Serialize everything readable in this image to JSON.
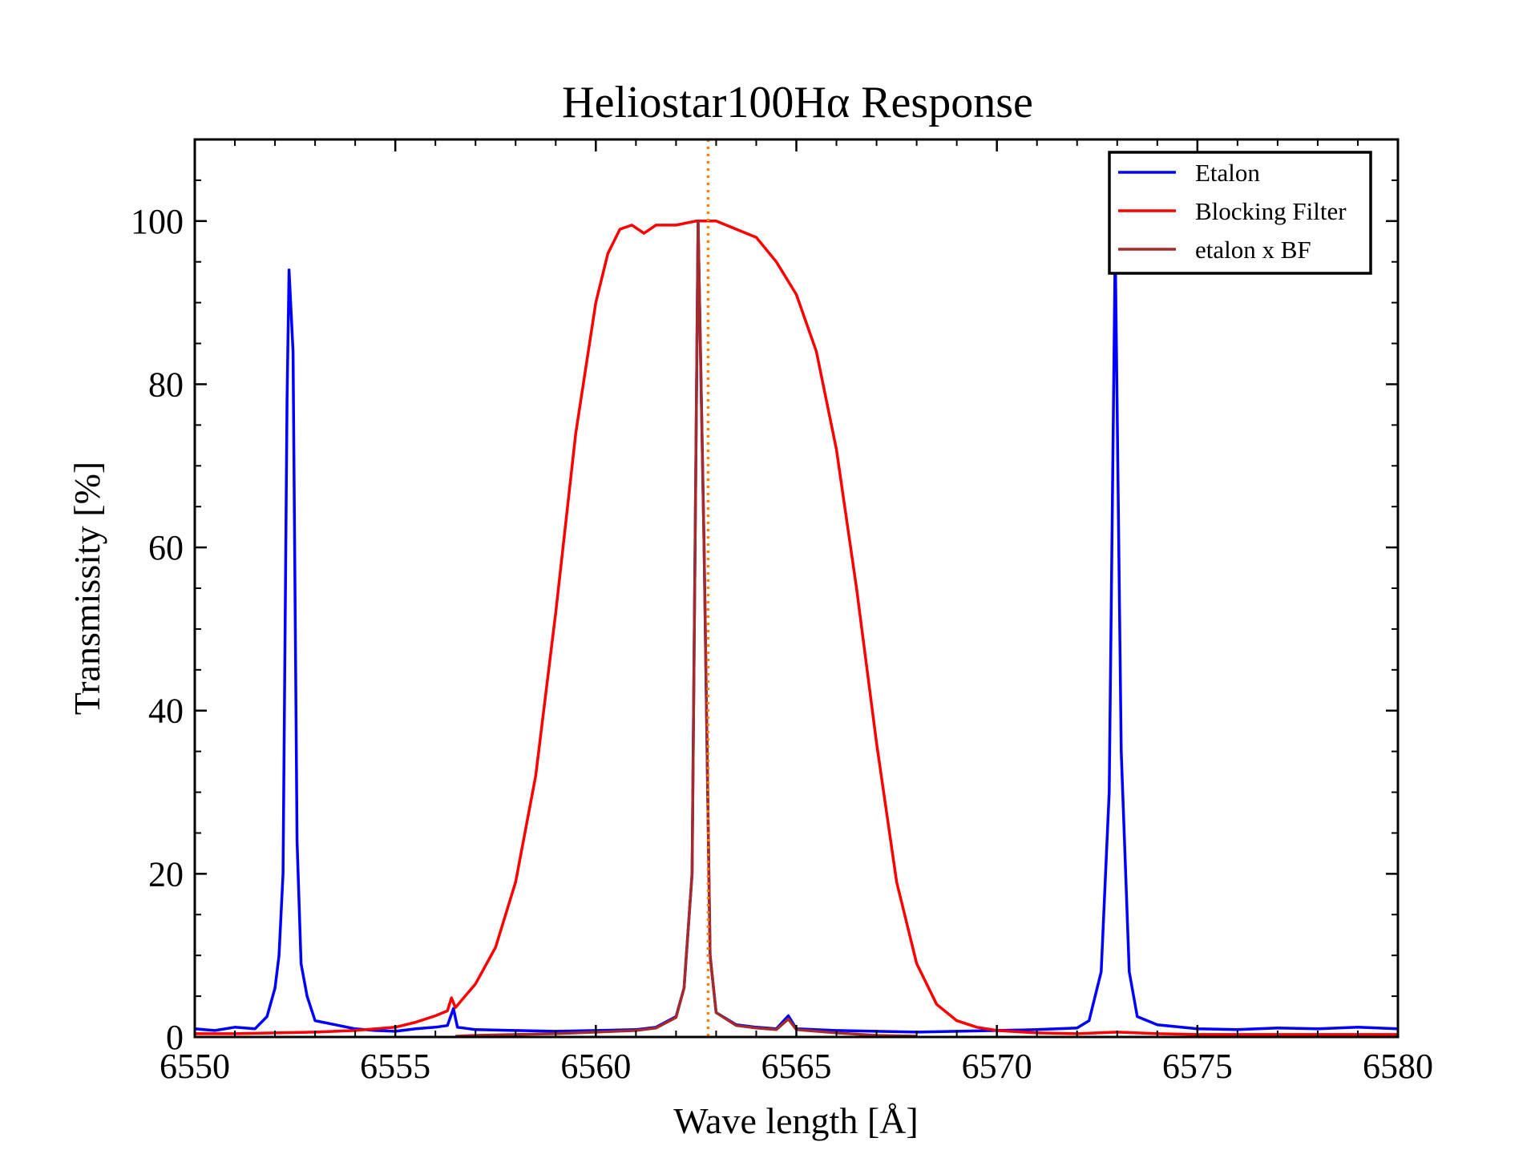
{
  "chart_data": {
    "type": "line",
    "title": "Heliostar100Hα Response",
    "xlabel": "Wave length [Å]",
    "ylabel": "Transmissity [%]",
    "xlim": [
      6550,
      6580
    ],
    "ylim": [
      0,
      110
    ],
    "x_ticks": [
      "6550",
      "6555",
      "6560",
      "6565",
      "6570",
      "6575",
      "6580"
    ],
    "y_ticks": [
      "0",
      "20",
      "40",
      "60",
      "80",
      "100"
    ],
    "grid": false,
    "legend_position": "top-right",
    "reference_line": {
      "x": 6562.8,
      "style": "dotted",
      "color": "#ff7f0e"
    },
    "series": [
      {
        "name": "Etalon",
        "color": "#0000ff",
        "points": [
          [
            6550,
            1.0
          ],
          [
            6550.5,
            0.8
          ],
          [
            6551,
            1.2
          ],
          [
            6551.5,
            1.0
          ],
          [
            6551.8,
            2.5
          ],
          [
            6552,
            6
          ],
          [
            6552.1,
            10
          ],
          [
            6552.2,
            20
          ],
          [
            6552.3,
            78
          ],
          [
            6552.35,
            94
          ],
          [
            6552.45,
            84
          ],
          [
            6552.55,
            24
          ],
          [
            6552.65,
            9
          ],
          [
            6552.8,
            5
          ],
          [
            6553,
            2
          ],
          [
            6553.5,
            1.5
          ],
          [
            6554,
            1.0
          ],
          [
            6554.5,
            0.8
          ],
          [
            6555,
            0.7
          ],
          [
            6555.5,
            1.0
          ],
          [
            6556,
            1.2
          ],
          [
            6556.3,
            1.4
          ],
          [
            6556.45,
            3.5
          ],
          [
            6556.55,
            1.2
          ],
          [
            6557,
            0.9
          ],
          [
            6558,
            0.8
          ],
          [
            6559,
            0.7
          ],
          [
            6560,
            0.8
          ],
          [
            6561,
            0.9
          ],
          [
            6561.5,
            1.2
          ],
          [
            6562,
            2.5
          ],
          [
            6562.2,
            6
          ],
          [
            6562.4,
            20
          ],
          [
            6562.55,
            100
          ],
          [
            6562.7,
            60
          ],
          [
            6562.85,
            10
          ],
          [
            6563,
            3
          ],
          [
            6563.5,
            1.5
          ],
          [
            6564,
            1.2
          ],
          [
            6564.5,
            1.0
          ],
          [
            6564.8,
            2.6
          ],
          [
            6565,
            1.0
          ],
          [
            6566,
            0.8
          ],
          [
            6567,
            0.7
          ],
          [
            6568,
            0.6
          ],
          [
            6569,
            0.7
          ],
          [
            6570,
            0.8
          ],
          [
            6571,
            0.9
          ],
          [
            6572,
            1.1
          ],
          [
            6572.3,
            2.0
          ],
          [
            6572.6,
            8
          ],
          [
            6572.8,
            30
          ],
          [
            6572.95,
            97
          ],
          [
            6573.1,
            35
          ],
          [
            6573.3,
            8
          ],
          [
            6573.5,
            2.5
          ],
          [
            6574,
            1.5
          ],
          [
            6575,
            1.0
          ],
          [
            6576,
            0.9
          ],
          [
            6577,
            1.1
          ],
          [
            6578,
            1.0
          ],
          [
            6579,
            1.2
          ],
          [
            6580,
            1.0
          ]
        ]
      },
      {
        "name": "Blocking Filter",
        "color": "#ff0000",
        "points": [
          [
            6550,
            0.4
          ],
          [
            6551,
            0.4
          ],
          [
            6552,
            0.5
          ],
          [
            6553,
            0.6
          ],
          [
            6554,
            0.8
          ],
          [
            6555,
            1.2
          ],
          [
            6555.5,
            1.8
          ],
          [
            6556,
            2.6
          ],
          [
            6556.3,
            3.2
          ],
          [
            6556.4,
            4.8
          ],
          [
            6556.5,
            3.6
          ],
          [
            6557,
            6.5
          ],
          [
            6557.5,
            11
          ],
          [
            6558,
            19
          ],
          [
            6558.5,
            32
          ],
          [
            6559,
            52
          ],
          [
            6559.5,
            74
          ],
          [
            6560,
            90
          ],
          [
            6560.3,
            96
          ],
          [
            6560.6,
            99
          ],
          [
            6560.9,
            99.5
          ],
          [
            6561.2,
            98.5
          ],
          [
            6561.5,
            99.5
          ],
          [
            6562,
            99.5
          ],
          [
            6562.5,
            100
          ],
          [
            6563,
            100
          ],
          [
            6563.5,
            99
          ],
          [
            6564,
            98
          ],
          [
            6564.5,
            95
          ],
          [
            6565,
            91
          ],
          [
            6565.5,
            84
          ],
          [
            6566,
            72
          ],
          [
            6566.5,
            55
          ],
          [
            6567,
            36
          ],
          [
            6567.5,
            19
          ],
          [
            6568,
            9
          ],
          [
            6568.5,
            4
          ],
          [
            6569,
            2
          ],
          [
            6569.5,
            1.2
          ],
          [
            6570,
            0.8
          ],
          [
            6571,
            0.5
          ],
          [
            6572,
            0.4
          ],
          [
            6573,
            0.6
          ],
          [
            6574,
            0.4
          ],
          [
            6575,
            0.3
          ],
          [
            6576,
            0.3
          ],
          [
            6577,
            0.3
          ],
          [
            6578,
            0.3
          ],
          [
            6579,
            0.3
          ],
          [
            6580,
            0.3
          ]
        ]
      },
      {
        "name": "etalon x BF",
        "color": "#a52a2a",
        "points": [
          [
            6556.5,
            0.1
          ],
          [
            6557,
            0.2
          ],
          [
            6558,
            0.3
          ],
          [
            6559,
            0.4
          ],
          [
            6560,
            0.6
          ],
          [
            6561,
            0.8
          ],
          [
            6561.5,
            1.1
          ],
          [
            6562,
            2.4
          ],
          [
            6562.2,
            6
          ],
          [
            6562.4,
            20
          ],
          [
            6562.55,
            100
          ],
          [
            6562.7,
            60
          ],
          [
            6562.85,
            10
          ],
          [
            6563,
            3
          ],
          [
            6563.5,
            1.4
          ],
          [
            6564,
            1.1
          ],
          [
            6564.5,
            0.9
          ],
          [
            6564.8,
            2.2
          ],
          [
            6565,
            0.9
          ],
          [
            6566,
            0.5
          ],
          [
            6567,
            0.2
          ],
          [
            6568,
            0.1
          ]
        ]
      }
    ]
  }
}
